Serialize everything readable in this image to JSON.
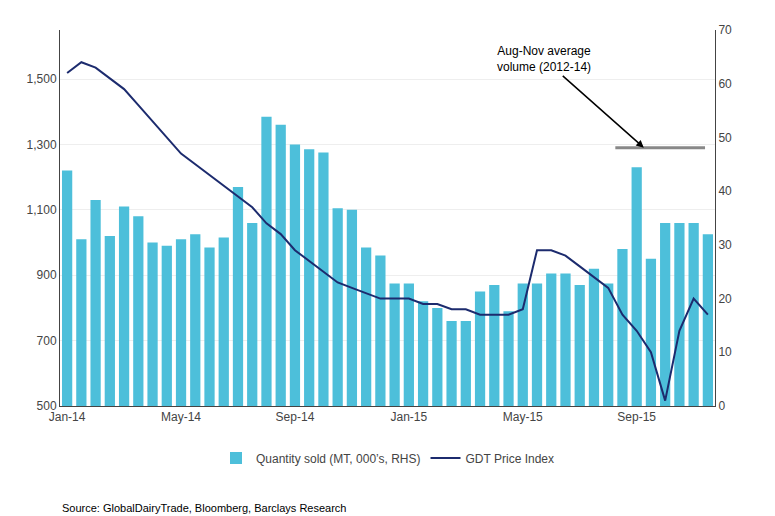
{
  "chart_data": {
    "type": "bar",
    "categories": [
      "Jan-14",
      null,
      null,
      null,
      null,
      null,
      null,
      null,
      "May-14",
      null,
      null,
      null,
      null,
      null,
      null,
      null,
      "Sep-14",
      null,
      null,
      null,
      null,
      null,
      null,
      null,
      "Jan-15",
      null,
      null,
      null,
      null,
      null,
      null,
      null,
      "May-15",
      null,
      null,
      null,
      null,
      null,
      null,
      null,
      "Sep-15",
      null,
      null,
      null,
      null,
      null
    ],
    "series": [
      {
        "name": "Quantity sold (MT, 000’s, RHS)",
        "type": "bar",
        "color": "#4DBFDA",
        "values": [
          1220,
          1010,
          1130,
          1020,
          1110,
          1080,
          1000,
          990,
          1010,
          1025,
          985,
          1015,
          1170,
          1060,
          1385,
          1360,
          1300,
          1285,
          1275,
          1105,
          1100,
          985,
          960,
          875,
          875,
          820,
          800,
          760,
          760,
          850,
          870,
          790,
          875,
          875,
          905,
          905,
          870,
          920,
          875,
          980,
          1230,
          950,
          1060,
          1060,
          1060,
          1025
        ]
      },
      {
        "name": "GDT Price Index",
        "type": "line",
        "color": "#1C2B6E",
        "axis": "y2",
        "values": [
          62,
          64,
          63,
          61,
          59,
          56,
          53,
          50,
          47,
          45,
          43,
          41,
          39,
          37,
          34,
          32,
          29,
          27,
          25,
          23,
          22,
          21,
          20,
          20,
          20,
          19,
          19,
          18,
          18,
          17,
          17,
          17,
          18,
          29,
          29,
          28,
          26,
          24,
          22,
          17,
          14,
          10,
          1,
          14,
          20,
          17
        ]
      }
    ],
    "ylim": [
      500,
      1650
    ],
    "yticks": [
      500,
      700,
      900,
      {
        "value": 1100,
        "label": "1,100"
      },
      {
        "value": 1300,
        "label": "1,300"
      },
      {
        "value": 1500,
        "label": "1,500"
      }
    ],
    "y2lim": [
      0,
      70
    ],
    "y2ticks": [
      0,
      10,
      20,
      30,
      40,
      50,
      60,
      70
    ],
    "grid": true,
    "legend": "bottom",
    "reference_line": {
      "x_start": 38.5,
      "x_end": 44.8,
      "y": 1290,
      "color": "#888888"
    },
    "annotations": [
      {
        "text": "Aug-Nov average\nvolume (2012-14)",
        "x": 33.5,
        "y": 1560,
        "arrow_x": 40.5,
        "arrow_y": 1290
      }
    ],
    "source": "Source: GlobalDairyTrade, Bloomberg, Barclays Research"
  }
}
